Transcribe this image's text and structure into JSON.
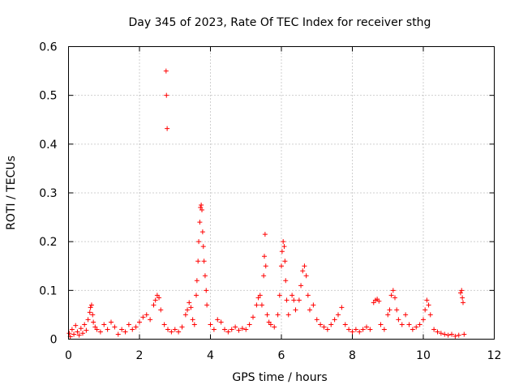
{
  "chart_data": {
    "type": "scatter",
    "title": "Day 345 of 2023, Rate Of TEC Index for receiver sthg",
    "xlabel": "GPS time / hours",
    "ylabel": "ROTI / TECUs",
    "xlim": [
      0,
      12
    ],
    "ylim": [
      0,
      0.6
    ],
    "x_ticks": [
      0,
      2,
      4,
      6,
      8,
      10,
      12
    ],
    "y_ticks": [
      0,
      0.1,
      0.2,
      0.3,
      0.4,
      0.5,
      0.6
    ],
    "x_tick_labels": [
      "0",
      "2",
      "4",
      "6",
      "8",
      "10",
      "12"
    ],
    "y_tick_labels": [
      "0",
      "0.1",
      "0.2",
      "0.3",
      "0.4",
      "0.5",
      "0.6"
    ],
    "grid": true,
    "marker": "+",
    "series_color": "#ff0000",
    "series": [
      {
        "name": "ROTI",
        "points": [
          [
            0.02,
            0.012
          ],
          [
            0.05,
            0.005
          ],
          [
            0.1,
            0.02
          ],
          [
            0.15,
            0.01
          ],
          [
            0.2,
            0.028
          ],
          [
            0.25,
            0.015
          ],
          [
            0.3,
            0.008
          ],
          [
            0.35,
            0.022
          ],
          [
            0.4,
            0.012
          ],
          [
            0.45,
            0.03
          ],
          [
            0.5,
            0.018
          ],
          [
            0.55,
            0.04
          ],
          [
            0.6,
            0.055
          ],
          [
            0.62,
            0.065
          ],
          [
            0.65,
            0.07
          ],
          [
            0.68,
            0.05
          ],
          [
            0.7,
            0.035
          ],
          [
            0.75,
            0.025
          ],
          [
            0.8,
            0.02
          ],
          [
            0.9,
            0.015
          ],
          [
            1.0,
            0.03
          ],
          [
            1.1,
            0.02
          ],
          [
            1.2,
            0.035
          ],
          [
            1.3,
            0.025
          ],
          [
            1.4,
            0.01
          ],
          [
            1.5,
            0.02
          ],
          [
            1.6,
            0.015
          ],
          [
            1.7,
            0.03
          ],
          [
            1.8,
            0.02
          ],
          [
            1.9,
            0.025
          ],
          [
            2.0,
            0.035
          ],
          [
            2.1,
            0.045
          ],
          [
            2.2,
            0.05
          ],
          [
            2.3,
            0.04
          ],
          [
            2.4,
            0.07
          ],
          [
            2.45,
            0.08
          ],
          [
            2.5,
            0.09
          ],
          [
            2.55,
            0.085
          ],
          [
            2.6,
            0.06
          ],
          [
            2.7,
            0.03
          ],
          [
            2.75,
            0.55
          ],
          [
            2.76,
            0.5
          ],
          [
            2.78,
            0.432
          ],
          [
            2.8,
            0.02
          ],
          [
            2.9,
            0.015
          ],
          [
            3.0,
            0.02
          ],
          [
            3.1,
            0.015
          ],
          [
            3.2,
            0.025
          ],
          [
            3.3,
            0.05
          ],
          [
            3.35,
            0.06
          ],
          [
            3.4,
            0.075
          ],
          [
            3.45,
            0.065
          ],
          [
            3.5,
            0.04
          ],
          [
            3.55,
            0.03
          ],
          [
            3.6,
            0.09
          ],
          [
            3.62,
            0.12
          ],
          [
            3.65,
            0.16
          ],
          [
            3.67,
            0.2
          ],
          [
            3.7,
            0.24
          ],
          [
            3.72,
            0.27
          ],
          [
            3.74,
            0.275
          ],
          [
            3.76,
            0.265
          ],
          [
            3.78,
            0.22
          ],
          [
            3.8,
            0.19
          ],
          [
            3.82,
            0.16
          ],
          [
            3.85,
            0.13
          ],
          [
            3.88,
            0.1
          ],
          [
            3.9,
            0.07
          ],
          [
            4.0,
            0.03
          ],
          [
            4.1,
            0.02
          ],
          [
            4.2,
            0.04
          ],
          [
            4.3,
            0.035
          ],
          [
            4.4,
            0.02
          ],
          [
            4.5,
            0.015
          ],
          [
            4.6,
            0.02
          ],
          [
            4.7,
            0.025
          ],
          [
            4.8,
            0.018
          ],
          [
            4.9,
            0.022
          ],
          [
            5.0,
            0.02
          ],
          [
            5.1,
            0.03
          ],
          [
            5.2,
            0.045
          ],
          [
            5.3,
            0.07
          ],
          [
            5.35,
            0.085
          ],
          [
            5.4,
            0.09
          ],
          [
            5.45,
            0.07
          ],
          [
            5.5,
            0.13
          ],
          [
            5.52,
            0.17
          ],
          [
            5.54,
            0.215
          ],
          [
            5.56,
            0.15
          ],
          [
            5.6,
            0.05
          ],
          [
            5.65,
            0.035
          ],
          [
            5.7,
            0.03
          ],
          [
            5.8,
            0.025
          ],
          [
            5.9,
            0.05
          ],
          [
            5.95,
            0.09
          ],
          [
            6.0,
            0.15
          ],
          [
            6.02,
            0.18
          ],
          [
            6.05,
            0.2
          ],
          [
            6.08,
            0.19
          ],
          [
            6.1,
            0.16
          ],
          [
            6.12,
            0.12
          ],
          [
            6.15,
            0.08
          ],
          [
            6.2,
            0.05
          ],
          [
            6.3,
            0.09
          ],
          [
            6.35,
            0.08
          ],
          [
            6.4,
            0.06
          ],
          [
            6.5,
            0.08
          ],
          [
            6.55,
            0.11
          ],
          [
            6.6,
            0.14
          ],
          [
            6.65,
            0.15
          ],
          [
            6.7,
            0.13
          ],
          [
            6.75,
            0.09
          ],
          [
            6.8,
            0.06
          ],
          [
            6.9,
            0.07
          ],
          [
            7.0,
            0.04
          ],
          [
            7.1,
            0.03
          ],
          [
            7.2,
            0.025
          ],
          [
            7.3,
            0.02
          ],
          [
            7.4,
            0.03
          ],
          [
            7.5,
            0.04
          ],
          [
            7.6,
            0.05
          ],
          [
            7.7,
            0.065
          ],
          [
            7.8,
            0.03
          ],
          [
            7.9,
            0.02
          ],
          [
            8.0,
            0.015
          ],
          [
            8.1,
            0.02
          ],
          [
            8.2,
            0.015
          ],
          [
            8.3,
            0.02
          ],
          [
            8.4,
            0.025
          ],
          [
            8.5,
            0.02
          ],
          [
            8.6,
            0.075
          ],
          [
            8.65,
            0.08
          ],
          [
            8.7,
            0.082
          ],
          [
            8.75,
            0.078
          ],
          [
            8.8,
            0.03
          ],
          [
            8.9,
            0.02
          ],
          [
            9.0,
            0.05
          ],
          [
            9.05,
            0.06
          ],
          [
            9.1,
            0.09
          ],
          [
            9.15,
            0.1
          ],
          [
            9.2,
            0.085
          ],
          [
            9.25,
            0.06
          ],
          [
            9.3,
            0.04
          ],
          [
            9.4,
            0.03
          ],
          [
            9.5,
            0.05
          ],
          [
            9.6,
            0.03
          ],
          [
            9.7,
            0.02
          ],
          [
            9.8,
            0.025
          ],
          [
            9.9,
            0.03
          ],
          [
            10.0,
            0.04
          ],
          [
            10.05,
            0.06
          ],
          [
            10.1,
            0.08
          ],
          [
            10.15,
            0.07
          ],
          [
            10.2,
            0.05
          ],
          [
            10.3,
            0.02
          ],
          [
            10.4,
            0.015
          ],
          [
            10.5,
            0.012
          ],
          [
            10.6,
            0.01
          ],
          [
            10.7,
            0.008
          ],
          [
            10.8,
            0.01
          ],
          [
            10.9,
            0.006
          ],
          [
            11.0,
            0.008
          ],
          [
            11.05,
            0.095
          ],
          [
            11.08,
            0.1
          ],
          [
            11.1,
            0.085
          ],
          [
            11.12,
            0.075
          ],
          [
            11.15,
            0.01
          ]
        ]
      }
    ]
  }
}
